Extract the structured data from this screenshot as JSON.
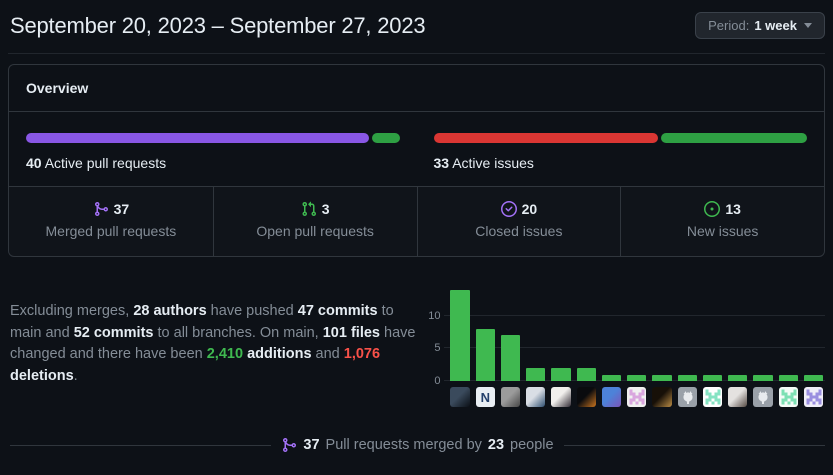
{
  "header": {
    "date_range": "September 20, 2023 – September 27, 2023",
    "period_label": "Period:",
    "period_value": "1 week"
  },
  "overview": {
    "title": "Overview",
    "pull_requests": {
      "count": "40",
      "label": "Active pull requests",
      "segments": [
        {
          "name": "merged",
          "pct": 92.5,
          "color": "#8957e5"
        },
        {
          "name": "open",
          "pct": 7.5,
          "color": "#2ea043"
        }
      ]
    },
    "issues": {
      "count": "33",
      "label": "Active issues",
      "segments": [
        {
          "name": "closed",
          "pct": 60.5,
          "color": "#da3633"
        },
        {
          "name": "new",
          "pct": 39.5,
          "color": "#2ea043"
        }
      ]
    },
    "stats": [
      {
        "icon": "git-merge-icon",
        "icon_color": "#a371f7",
        "value": "37",
        "label": "Merged pull requests"
      },
      {
        "icon": "git-pull-request-icon",
        "icon_color": "#3fb950",
        "value": "3",
        "label": "Open pull requests"
      },
      {
        "icon": "issue-closed-icon",
        "icon_color": "#a371f7",
        "value": "20",
        "label": "Closed issues"
      },
      {
        "icon": "issue-opened-icon",
        "icon_color": "#3fb950",
        "value": "13",
        "label": "New issues"
      }
    ]
  },
  "summary_segments": [
    {
      "text": "Excluding merges, ",
      "style": "muted"
    },
    {
      "text": "28 authors",
      "style": "strong"
    },
    {
      "text": " have pushed ",
      "style": "muted"
    },
    {
      "text": "47 commits",
      "style": "strong"
    },
    {
      "text": " to main and ",
      "style": "muted"
    },
    {
      "text": "52 commits",
      "style": "strong"
    },
    {
      "text": " to all branches. On main, ",
      "style": "muted"
    },
    {
      "text": "101 files",
      "style": "strong"
    },
    {
      "text": " have changed and there have been ",
      "style": "muted"
    },
    {
      "text": "2,410",
      "style": "additions"
    },
    {
      "text": " ",
      "style": "muted"
    },
    {
      "text": "additions",
      "style": "strong"
    },
    {
      "text": " and ",
      "style": "muted"
    },
    {
      "text": "1,076",
      "style": "deletions"
    },
    {
      "text": " ",
      "style": "muted"
    },
    {
      "text": "deletions",
      "style": "strong"
    },
    {
      "text": ".",
      "style": "muted"
    }
  ],
  "chart_data": {
    "type": "bar",
    "title": "",
    "xlabel": "",
    "ylabel": "",
    "values": [
      14,
      8,
      7,
      2,
      2,
      2,
      1,
      1,
      1,
      1,
      1,
      1,
      1,
      1,
      1
    ],
    "y_ticks": [
      0,
      5,
      10
    ],
    "ylim": [
      0,
      15
    ],
    "grid": true,
    "bar_color": "#3fb950",
    "gridline_color": "#21262d",
    "x_labels": "contributor avatars (one per bar)",
    "avatars": [
      {
        "kind": "photo",
        "c1": "#3a4a5c",
        "c2": "#0b1016"
      },
      {
        "kind": "letter",
        "c1": "#e9eef3",
        "c2": "#24406b",
        "letter": "N"
      },
      {
        "kind": "photo",
        "c1": "#9b9b9b",
        "c2": "#474747"
      },
      {
        "kind": "photo",
        "c1": "#d9dee5",
        "c2": "#2f4f70"
      },
      {
        "kind": "photo",
        "c1": "#f1efec",
        "c2": "#332d36"
      },
      {
        "kind": "photo",
        "c1": "#0a0b0e",
        "c2": "#c9741f"
      },
      {
        "kind": "photo",
        "c1": "#4d82d8",
        "c2": "#7b55b8"
      },
      {
        "kind": "identicon",
        "c1": "#f0f0f0",
        "c2": "#d9a6de"
      },
      {
        "kind": "photo",
        "c1": "#171008",
        "c2": "#bb8d45"
      },
      {
        "kind": "octocat",
        "c1": "#9aa1a9",
        "c2": "#e8ebee"
      },
      {
        "kind": "identicon",
        "c1": "#ffffff",
        "c2": "#86e3c3"
      },
      {
        "kind": "photo",
        "c1": "#e4e2e0",
        "c2": "#554a44"
      },
      {
        "kind": "octocat",
        "c1": "#9aa1a9",
        "c2": "#e8ebee"
      },
      {
        "kind": "identicon",
        "c1": "#f4fbf7",
        "c2": "#7de0b4"
      },
      {
        "kind": "identicon",
        "c1": "#efeef8",
        "c2": "#9a8fe0"
      }
    ]
  },
  "merged_note": {
    "icon": "git-merge-icon",
    "icon_color": "#a371f7",
    "segments": [
      {
        "text": "37",
        "style": "strong"
      },
      {
        "text": " Pull requests merged by ",
        "style": "muted"
      },
      {
        "text": "23",
        "style": "strong"
      },
      {
        "text": " people",
        "style": "muted"
      }
    ]
  }
}
